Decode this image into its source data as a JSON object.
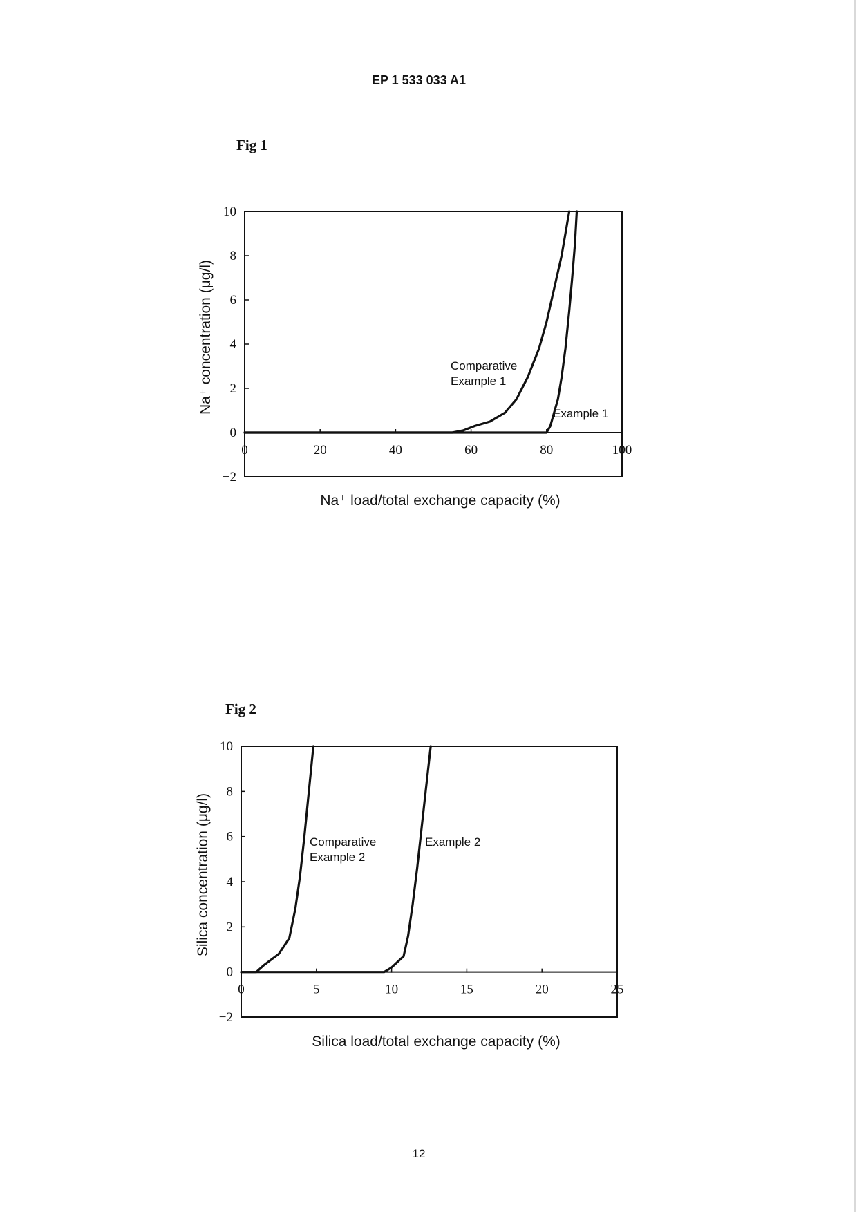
{
  "document": {
    "header": "EP 1 533 033 A1",
    "page_number": "12"
  },
  "figures": [
    {
      "label": "Fig 1"
    },
    {
      "label": "Fig 2"
    }
  ],
  "chart_data": [
    {
      "type": "line",
      "title": "",
      "xlabel": "Na⁺ load/total exchange capacity (%)",
      "ylabel": "Na⁺ concentration (μg/l)",
      "xlim": [
        0,
        100
      ],
      "ylim": [
        -2,
        10
      ],
      "xticks": [
        0,
        20,
        40,
        60,
        80,
        100
      ],
      "yticks": [
        -2,
        0,
        2,
        4,
        6,
        8,
        10
      ],
      "grid": false,
      "series": [
        {
          "name": "Comparative Example 1",
          "label_lines": [
            "Comparative",
            "Example 1"
          ],
          "x": [
            0,
            55,
            58,
            61,
            65,
            69,
            72,
            75,
            78,
            80,
            82,
            84,
            85,
            86
          ],
          "y": [
            0,
            0,
            0.1,
            0.3,
            0.5,
            0.9,
            1.5,
            2.5,
            3.8,
            5.0,
            6.5,
            8.0,
            9.0,
            10
          ]
        },
        {
          "name": "Example 1",
          "label_lines": [
            "Example 1"
          ],
          "x": [
            0,
            80,
            81,
            82,
            83,
            84,
            85,
            86,
            86.8,
            87.5,
            88
          ],
          "y": [
            0,
            0,
            0.3,
            0.9,
            1.5,
            2.5,
            3.8,
            5.5,
            7.0,
            8.5,
            10
          ]
        }
      ]
    },
    {
      "type": "line",
      "title": "",
      "xlabel": "Silica load/total exchange capacity (%)",
      "ylabel": "Silica concentration (μg/l)",
      "xlim": [
        0,
        25
      ],
      "ylim": [
        -2,
        10
      ],
      "xticks": [
        0,
        5,
        10,
        15,
        20,
        25
      ],
      "yticks": [
        -2,
        0,
        2,
        4,
        6,
        8,
        10
      ],
      "grid": false,
      "series": [
        {
          "name": "Comparative Example 2",
          "label_lines": [
            "Comparative",
            "Example 2"
          ],
          "x": [
            0,
            1.0,
            1.5,
            2.5,
            3.2,
            3.6,
            3.9,
            4.2,
            4.5,
            4.8
          ],
          "y": [
            0,
            0,
            0.3,
            0.8,
            1.5,
            2.8,
            4.2,
            6.0,
            8.0,
            10
          ]
        },
        {
          "name": "Example 2",
          "label_lines": [
            "Example 2"
          ],
          "x": [
            0,
            9.5,
            10.0,
            10.8,
            11.1,
            11.4,
            11.7,
            12.0,
            12.3,
            12.6
          ],
          "y": [
            0,
            0,
            0.2,
            0.7,
            1.6,
            3.0,
            4.6,
            6.4,
            8.2,
            10
          ]
        }
      ]
    }
  ]
}
